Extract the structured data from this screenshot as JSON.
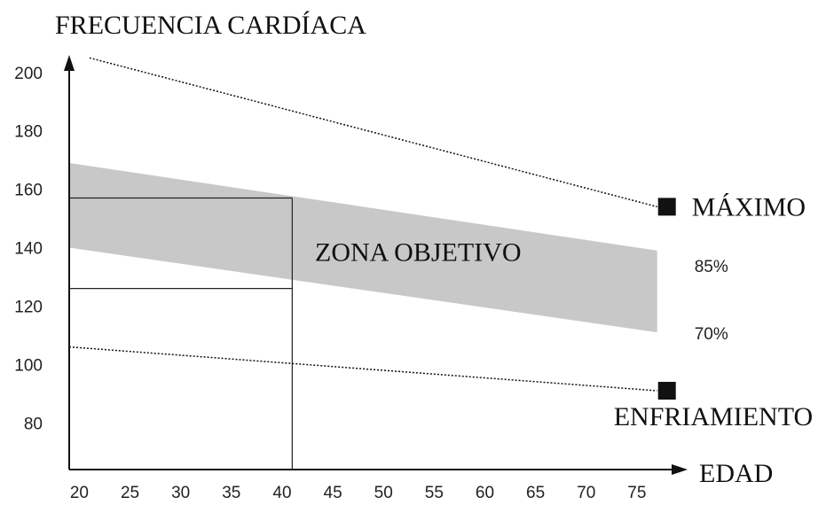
{
  "chart_data": {
    "type": "line",
    "y_label": "FRECUENCIA CARDÍACA",
    "x_label": "EDAD",
    "xlim": [
      19,
      80
    ],
    "ylim": [
      64,
      206
    ],
    "xticks": [
      20,
      25,
      30,
      35,
      40,
      45,
      50,
      55,
      60,
      65,
      70,
      75
    ],
    "yticks": [
      80,
      100,
      120,
      140,
      160,
      180,
      200
    ],
    "series": [
      {
        "name": "MÁXIMO",
        "color": "#111111",
        "x": [
          21,
          77
        ],
        "values": [
          205,
          154
        ]
      },
      {
        "name": "ENFRIAMIENTO",
        "color": "#111111",
        "x": [
          19,
          77
        ],
        "values": [
          106,
          91
        ]
      }
    ],
    "band": {
      "label": "ZONA OBJETIVO",
      "color": "#c8c8c8",
      "x": [
        19,
        77
      ],
      "upper": {
        "name": "85%",
        "values": [
          169,
          139
        ]
      },
      "lower": {
        "name": "70%",
        "values": [
          140,
          111
        ]
      }
    },
    "example": {
      "x": 41,
      "upper": 157,
      "lower": 126
    }
  }
}
